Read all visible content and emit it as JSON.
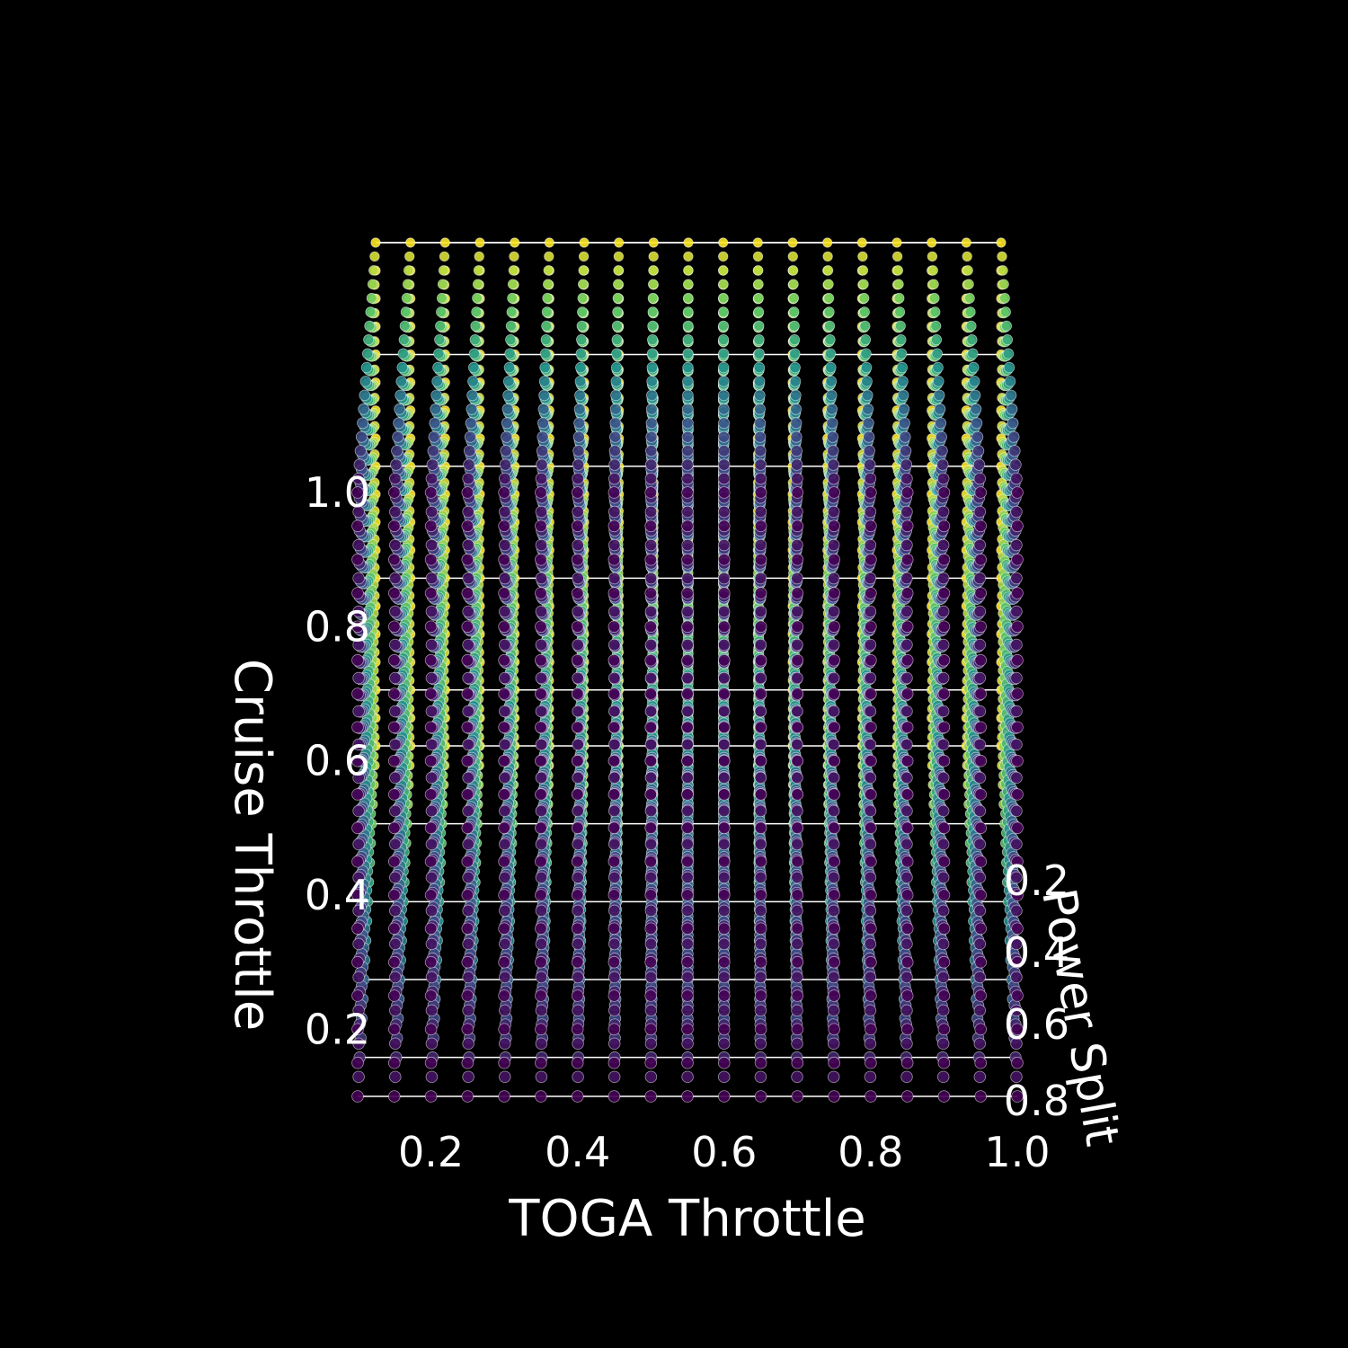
{
  "chart_data": {
    "type": "scatter",
    "projection": "3d",
    "title": "",
    "x_axis": {
      "label": "TOGA Throttle",
      "ticks": [
        0.2,
        0.4,
        0.6,
        0.8,
        1.0
      ],
      "tick_labels": [
        "0.2",
        "0.4",
        "0.6",
        "0.8",
        "1.0"
      ],
      "range": [
        0.1,
        1.0
      ]
    },
    "y_axis": {
      "label": "Power Split",
      "ticks": [
        0.2,
        0.4,
        0.6,
        0.8
      ],
      "tick_labels": [
        "0.2",
        "0.4",
        "0.6",
        "0.8"
      ],
      "range": [
        0.1,
        1.0
      ]
    },
    "z_axis": {
      "label": "Cruise Throttle",
      "ticks": [
        0.2,
        0.4,
        0.6,
        0.8,
        1.0
      ],
      "tick_labels": [
        "0.2",
        "0.4",
        "0.6",
        "0.8",
        "1.0"
      ],
      "range": [
        0.1,
        1.0
      ]
    },
    "grid": {
      "x_values": [
        0.1,
        0.15,
        0.2,
        0.25,
        0.3,
        0.35,
        0.4,
        0.45,
        0.5,
        0.55,
        0.6,
        0.65,
        0.7,
        0.75,
        0.8,
        0.85,
        0.9,
        0.95,
        1.0
      ],
      "y_values": [
        0.1,
        0.15,
        0.2,
        0.25,
        0.3,
        0.35,
        0.4,
        0.45,
        0.5,
        0.55,
        0.6,
        0.65,
        0.7,
        0.75,
        0.8,
        0.85,
        0.9,
        0.95,
        1.0
      ],
      "z_values": [
        0.1,
        0.15,
        0.2,
        0.25,
        0.3,
        0.35,
        0.4,
        0.45,
        0.5,
        0.55,
        0.6,
        0.65,
        0.7,
        0.75,
        0.8,
        0.85,
        0.9,
        0.95,
        1.0
      ]
    },
    "color_map": "viridis",
    "colormap_stops": [
      "#440154",
      "#3b528b",
      "#21918c",
      "#5ec962",
      "#fde725"
    ],
    "background_color": "#000000",
    "foreground_color": "#ffffff"
  }
}
